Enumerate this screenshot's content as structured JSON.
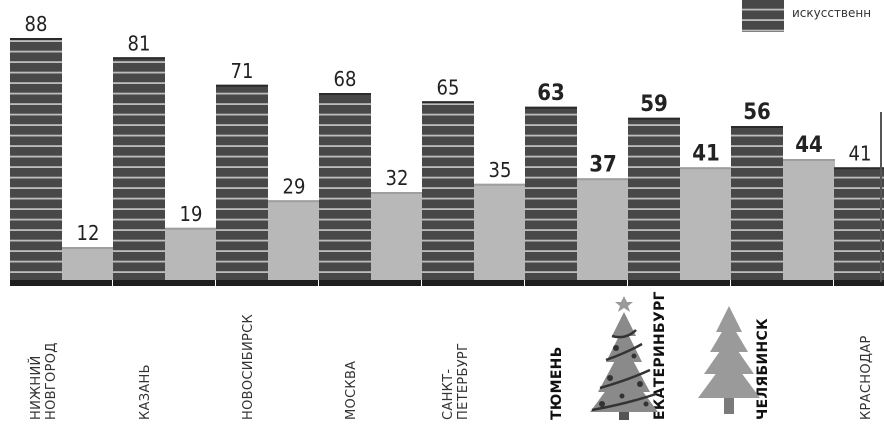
{
  "chart_data": {
    "type": "bar",
    "categories": [
      "НИЖНИЙ НОВГОРОД",
      "КАЗАНЬ",
      "НОВОСИБИРСК",
      "МОСКВА",
      "САНКТ-ПЕТЕРБУРГ",
      "ТЮМЕНЬ",
      "ЕКАТЕРИНБУРГ",
      "ЧЕЛЯБИНСК",
      "КРАСНОДАР"
    ],
    "category_lines": [
      [
        "НИЖНИЙ",
        "НОВГОРОД"
      ],
      [
        "КАЗАНЬ"
      ],
      [
        "НОВОСИБИРСК"
      ],
      [
        "МОСКВА"
      ],
      [
        "САНКТ-",
        "ПЕТЕРБУРГ"
      ],
      [
        "ТЮМЕНЬ"
      ],
      [
        "ЕКАТЕРИНБУРГ"
      ],
      [
        "ЧЕЛЯБИНСК"
      ],
      [
        "КРАСНОДАР"
      ]
    ],
    "bold_categories": [
      "ТЮМЕНЬ",
      "ЕКАТЕРИНБУРГ",
      "ЧЕЛЯБИНСК"
    ],
    "series": [
      {
        "values": [
          88,
          81,
          71,
          68,
          65,
          63,
          59,
          56,
          41
        ],
        "color": "#4a4a4a",
        "striped": true
      },
      {
        "name": "искусственн",
        "values": [
          12,
          19,
          29,
          32,
          35,
          37,
          41,
          44,
          null
        ],
        "color": "#b8b8b8",
        "striped": false
      }
    ],
    "ylim": [
      0,
      100
    ],
    "legend": {
      "position": "top-right",
      "label": "искусственн"
    },
    "decorations": [
      "decorated-christmas-tree-icon",
      "plain-christmas-tree-icon"
    ]
  }
}
